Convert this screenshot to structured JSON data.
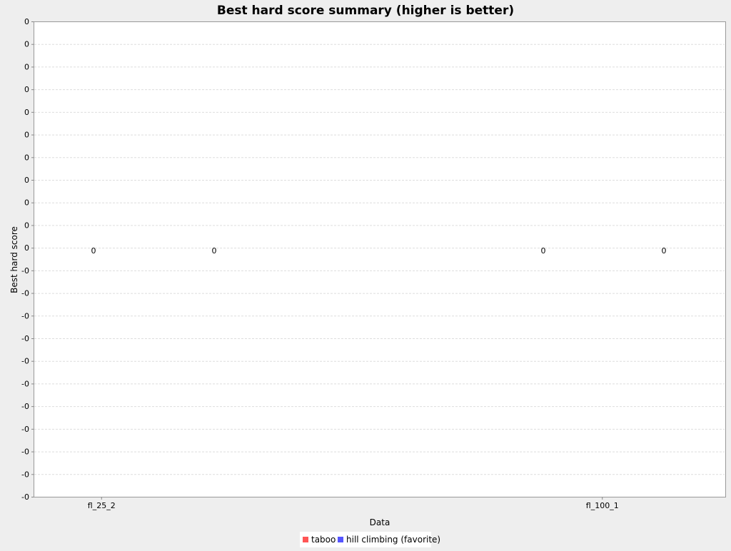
{
  "chart_data": {
    "type": "bar",
    "title": "Best hard score summary (higher is better)",
    "xlabel": "Data",
    "ylabel": "Best hard score",
    "categories": [
      "fl_25_2",
      "fl_100_1"
    ],
    "series": [
      {
        "name": "taboo",
        "color": "#ff5555",
        "values": [
          0,
          0
        ]
      },
      {
        "name": "hill climbing (favorite)",
        "color": "#5555ff",
        "values": [
          0,
          0
        ]
      }
    ],
    "y_tick_labels": [
      "0",
      "0",
      "0",
      "0",
      "0",
      "0",
      "0",
      "0",
      "0",
      "0",
      "0",
      "-0",
      "-0",
      "-0",
      "-0",
      "-0",
      "-0",
      "-0",
      "-0",
      "-0",
      "-0",
      "-0"
    ],
    "bar_value_labels": [
      [
        "0",
        "0"
      ],
      [
        "0",
        "0"
      ]
    ],
    "ylim": [
      -1,
      1
    ],
    "grid": true,
    "legend_position": "bottom"
  }
}
